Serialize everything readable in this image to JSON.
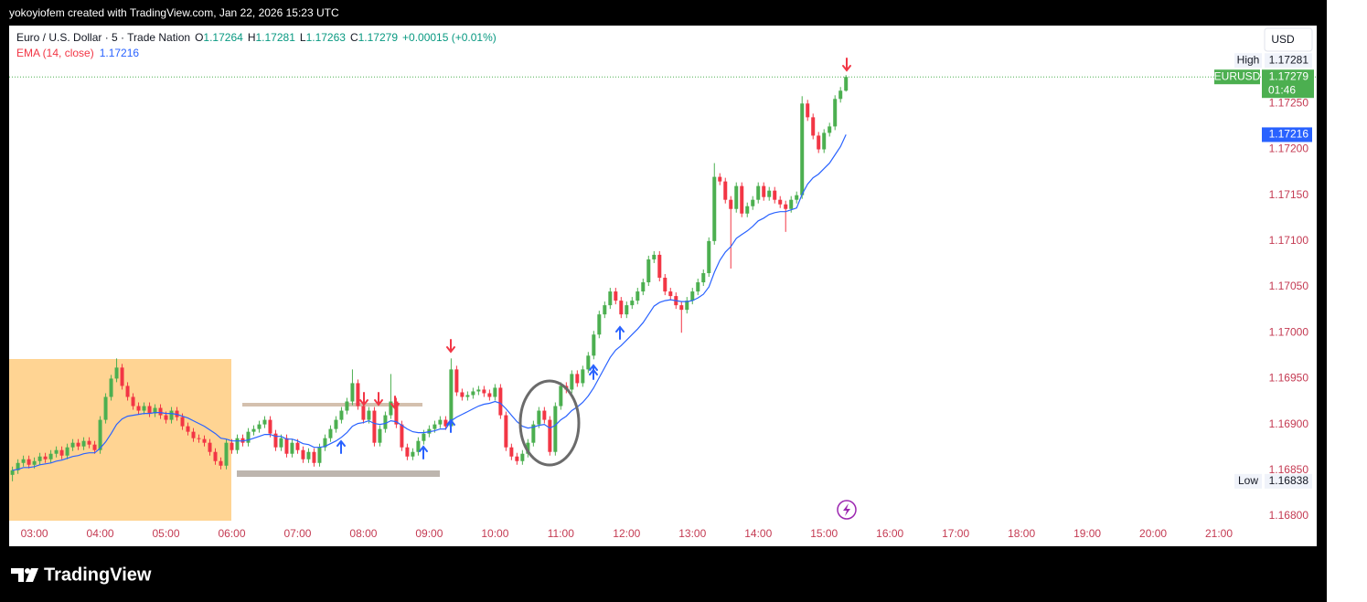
{
  "watermark": "yokoyiofem created with TradingView.com, Jan 22, 2026 15:23 UTC",
  "logo": "TradingView",
  "chart_data": {
    "type": "candlestick",
    "title": "Euro / U.S. Dollar · 5 · Trade Nation",
    "legend_keys": [
      "O",
      "H",
      "L",
      "C"
    ],
    "change": "+0.00015 (+0.01%)",
    "ema_label": "EMA (14, close)",
    "ema_color": "#2962ff",
    "up_color": "#4caf50",
    "down_color": "#f23645",
    "currency": "USD",
    "symbol": "EURUSD",
    "countdown": "01:46",
    "high_label": "High",
    "low_label": "Low",
    "x": [
      "02:40",
      "02:45",
      "02:50",
      "02:55",
      "03:00",
      "03:05",
      "03:10",
      "03:15",
      "03:20",
      "03:25",
      "03:30",
      "03:35",
      "03:40",
      "03:45",
      "03:50",
      "03:55",
      "04:00",
      "04:05",
      "04:10",
      "04:15",
      "04:20",
      "04:25",
      "04:30",
      "04:35",
      "04:40",
      "04:45",
      "04:50",
      "04:55",
      "05:00",
      "05:05",
      "05:10",
      "05:15",
      "05:20",
      "05:25",
      "05:30",
      "05:35",
      "05:40",
      "05:45",
      "05:50",
      "05:55",
      "06:00",
      "06:05",
      "06:10",
      "06:15",
      "06:20",
      "06:25",
      "06:30",
      "06:35",
      "06:40",
      "06:45",
      "06:50",
      "06:55",
      "07:00",
      "07:05",
      "07:10",
      "07:15",
      "07:20",
      "07:25",
      "07:30",
      "07:35",
      "07:40",
      "07:45",
      "07:50",
      "07:55",
      "08:00",
      "08:05",
      "08:10",
      "08:15",
      "08:20",
      "08:25",
      "08:30",
      "08:35",
      "08:40",
      "08:45",
      "08:50",
      "08:55",
      "09:00",
      "09:05",
      "09:10",
      "09:15",
      "09:20",
      "09:25",
      "09:30",
      "09:35",
      "09:40",
      "09:45",
      "09:50",
      "09:55",
      "10:00",
      "10:05",
      "10:10",
      "10:15",
      "10:20",
      "10:25",
      "10:30",
      "10:35",
      "10:40",
      "10:45",
      "10:50",
      "10:55",
      "11:00",
      "11:05",
      "11:10",
      "11:15",
      "11:20",
      "11:25",
      "11:30",
      "11:35",
      "11:40",
      "11:45",
      "11:50",
      "11:55",
      "12:00",
      "12:05",
      "12:10",
      "12:15",
      "12:20",
      "12:25",
      "12:30",
      "12:35",
      "12:40",
      "12:45",
      "12:50",
      "12:55",
      "13:00",
      "13:05",
      "13:10",
      "13:15",
      "13:20",
      "13:25",
      "13:30",
      "13:35",
      "13:40",
      "13:45",
      "13:50",
      "13:55",
      "14:00",
      "14:05",
      "14:10",
      "14:15",
      "14:20",
      "14:25",
      "14:30",
      "14:35",
      "14:40",
      "14:45",
      "14:50",
      "14:55",
      "15:00",
      "15:05",
      "15:10",
      "15:15",
      "15:20"
    ],
    "open": [
      1.16845,
      1.1685,
      1.16858,
      1.16862,
      1.16856,
      1.1686,
      1.16865,
      1.16862,
      1.16868,
      1.16872,
      1.16866,
      1.16875,
      1.1688,
      1.16876,
      1.16882,
      1.16878,
      1.16872,
      1.16905,
      1.1693,
      1.1695,
      1.16962,
      1.16942,
      1.1693,
      1.1692,
      1.16915,
      1.1692,
      1.16912,
      1.16918,
      1.1691,
      1.16905,
      1.16915,
      1.16908,
      1.16898,
      1.16892,
      1.16885,
      1.16884,
      1.1688,
      1.1687,
      1.1686,
      1.16855,
      1.1688,
      1.16872,
      1.16885,
      1.1688,
      1.16892,
      1.16895,
      1.169,
      1.16905,
      1.1689,
      1.16875,
      1.16885,
      1.16868,
      1.1688,
      1.16872,
      1.16862,
      1.1687,
      1.16858,
      1.16875,
      1.16885,
      1.16895,
      1.16905,
      1.16915,
      1.16925,
      1.16945,
      1.1692,
      1.16905,
      1.16915,
      1.1688,
      1.16895,
      1.1691,
      1.16925,
      1.169,
      1.16875,
      1.16865,
      1.1687,
      1.16882,
      1.1689,
      1.16895,
      1.169,
      1.16905,
      1.16898,
      1.1696,
      1.16935,
      1.1693,
      1.16932,
      1.16936,
      1.16938,
      1.16934,
      1.1693,
      1.1694,
      1.1691,
      1.16875,
      1.16865,
      1.1686,
      1.16868,
      1.1688,
      1.169,
      1.16915,
      1.16905,
      1.1687,
      1.1692,
      1.16942,
      1.16938,
      1.16955,
      1.16945,
      1.1696,
      1.16975,
      1.16998,
      1.1702,
      1.1703,
      1.17045,
      1.17035,
      1.1702,
      1.1703,
      1.17035,
      1.17045,
      1.17055,
      1.1708,
      1.17085,
      1.1706,
      1.17045,
      1.1704,
      1.1703,
      1.17025,
      1.17035,
      1.17045,
      1.17055,
      1.17065,
      1.171,
      1.1717,
      1.17165,
      1.17145,
      1.17135,
      1.1716,
      1.1713,
      1.17138,
      1.17145,
      1.1716,
      1.17148,
      1.17155,
      1.17145,
      1.1714,
      1.17135,
      1.17145,
      1.1715,
      1.1725,
      1.17235,
      1.17215,
      1.172,
      1.17218,
      1.17225,
      1.17255,
      1.17264
    ],
    "high": [
      1.16854,
      1.16862,
      1.16866,
      1.16866,
      1.16864,
      1.16869,
      1.16869,
      1.16872,
      1.16876,
      1.16876,
      1.16879,
      1.16884,
      1.16884,
      1.16886,
      1.16886,
      1.16882,
      1.16909,
      1.16934,
      1.16954,
      1.16972,
      1.16966,
      1.16946,
      1.16934,
      1.16924,
      1.16924,
      1.16924,
      1.16922,
      1.16922,
      1.16914,
      1.16919,
      1.16919,
      1.16912,
      1.16902,
      1.16896,
      1.16889,
      1.16888,
      1.16884,
      1.16874,
      1.16864,
      1.16884,
      1.16884,
      1.16889,
      1.16889,
      1.16896,
      1.16899,
      1.16904,
      1.16909,
      1.16909,
      1.16894,
      1.16889,
      1.16889,
      1.16884,
      1.16884,
      1.16876,
      1.16874,
      1.16874,
      1.16879,
      1.16889,
      1.16899,
      1.16909,
      1.16919,
      1.16929,
      1.1696,
      1.16949,
      1.16924,
      1.16919,
      1.16919,
      1.16899,
      1.16914,
      1.16955,
      1.16929,
      1.16904,
      1.16879,
      1.16874,
      1.16886,
      1.16894,
      1.16899,
      1.16904,
      1.16909,
      1.16909,
      1.16972,
      1.16964,
      1.16939,
      1.16936,
      1.1694,
      1.16942,
      1.16942,
      1.16938,
      1.16944,
      1.16944,
      1.16914,
      1.16879,
      1.16869,
      1.16872,
      1.16884,
      1.16904,
      1.16919,
      1.16919,
      1.16909,
      1.16924,
      1.16946,
      1.16946,
      1.16959,
      1.16959,
      1.16964,
      1.16979,
      1.17002,
      1.17024,
      1.17034,
      1.17049,
      1.17049,
      1.17039,
      1.17034,
      1.17039,
      1.17049,
      1.17059,
      1.17084,
      1.17089,
      1.17089,
      1.17064,
      1.17049,
      1.17044,
      1.17034,
      1.17039,
      1.17049,
      1.17059,
      1.17069,
      1.17104,
      1.17185,
      1.17174,
      1.17169,
      1.17149,
      1.17164,
      1.17164,
      1.17142,
      1.17149,
      1.17164,
      1.17164,
      1.17159,
      1.17159,
      1.17149,
      1.17144,
      1.17149,
      1.17154,
      1.17258,
      1.17254,
      1.17239,
      1.17219,
      1.17222,
      1.17229,
      1.17259,
      1.17268,
      1.17281
    ],
    "low": [
      1.16838,
      1.16846,
      1.16854,
      1.16852,
      1.16852,
      1.16856,
      1.16858,
      1.16858,
      1.16864,
      1.16862,
      1.16862,
      1.16871,
      1.16872,
      1.16872,
      1.16874,
      1.16868,
      1.16868,
      1.16901,
      1.16926,
      1.16946,
      1.16938,
      1.16926,
      1.16916,
      1.16911,
      1.16911,
      1.16908,
      1.16908,
      1.16906,
      1.16901,
      1.16901,
      1.16904,
      1.16894,
      1.16888,
      1.16881,
      1.1688,
      1.16876,
      1.16866,
      1.16856,
      1.16851,
      1.16851,
      1.16868,
      1.16868,
      1.16876,
      1.16876,
      1.16888,
      1.16891,
      1.16896,
      1.16886,
      1.16871,
      1.16871,
      1.16864,
      1.16864,
      1.16868,
      1.16858,
      1.16858,
      1.16854,
      1.16854,
      1.16871,
      1.16881,
      1.16891,
      1.16901,
      1.16911,
      1.16921,
      1.16916,
      1.16901,
      1.16901,
      1.16876,
      1.16876,
      1.16891,
      1.16906,
      1.16896,
      1.16871,
      1.16861,
      1.16861,
      1.16866,
      1.16878,
      1.16886,
      1.16891,
      1.16896,
      1.16894,
      1.16894,
      1.16931,
      1.16926,
      1.16926,
      1.16928,
      1.16932,
      1.1693,
      1.16926,
      1.16926,
      1.16906,
      1.16871,
      1.16861,
      1.16856,
      1.16856,
      1.16864,
      1.16876,
      1.16896,
      1.16901,
      1.16866,
      1.16866,
      1.16916,
      1.16934,
      1.16934,
      1.16941,
      1.16941,
      1.16956,
      1.16971,
      1.16994,
      1.17016,
      1.17026,
      1.17031,
      1.17016,
      1.17016,
      1.17026,
      1.17031,
      1.17041,
      1.17051,
      1.17076,
      1.17056,
      1.17041,
      1.17036,
      1.17026,
      1.17,
      1.17021,
      1.17031,
      1.17041,
      1.17051,
      1.17061,
      1.17096,
      1.17161,
      1.17141,
      1.1707,
      1.17131,
      1.17126,
      1.17126,
      1.17134,
      1.17141,
      1.17144,
      1.17144,
      1.17141,
      1.17136,
      1.1711,
      1.17131,
      1.17141,
      1.17146,
      1.17231,
      1.17211,
      1.17196,
      1.17196,
      1.17214,
      1.17221,
      1.17251,
      1.17263
    ],
    "close": [
      1.1685,
      1.16858,
      1.16862,
      1.16856,
      1.1686,
      1.16865,
      1.16862,
      1.16868,
      1.16872,
      1.16866,
      1.16875,
      1.1688,
      1.16876,
      1.16882,
      1.16878,
      1.16872,
      1.16905,
      1.1693,
      1.1695,
      1.16962,
      1.16942,
      1.1693,
      1.1692,
      1.16915,
      1.1692,
      1.16912,
      1.16918,
      1.1691,
      1.16905,
      1.16915,
      1.16908,
      1.16898,
      1.16892,
      1.16885,
      1.16884,
      1.1688,
      1.1687,
      1.1686,
      1.16855,
      1.1688,
      1.16872,
      1.16885,
      1.1688,
      1.16892,
      1.16895,
      1.169,
      1.16905,
      1.1689,
      1.16875,
      1.16885,
      1.16868,
      1.1688,
      1.16872,
      1.16862,
      1.1687,
      1.16858,
      1.16875,
      1.16885,
      1.16895,
      1.16905,
      1.16915,
      1.16925,
      1.16945,
      1.1692,
      1.16905,
      1.16915,
      1.1688,
      1.16895,
      1.1691,
      1.16925,
      1.169,
      1.16875,
      1.16865,
      1.1687,
      1.16882,
      1.1689,
      1.16895,
      1.169,
      1.16905,
      1.16898,
      1.1696,
      1.16935,
      1.1693,
      1.16932,
      1.16936,
      1.16938,
      1.16934,
      1.1693,
      1.1694,
      1.1691,
      1.16875,
      1.16865,
      1.1686,
      1.16868,
      1.1688,
      1.169,
      1.16915,
      1.16905,
      1.1687,
      1.1692,
      1.16942,
      1.16938,
      1.16955,
      1.16945,
      1.1696,
      1.16975,
      1.16998,
      1.1702,
      1.1703,
      1.17045,
      1.17035,
      1.1702,
      1.1703,
      1.17035,
      1.17045,
      1.17055,
      1.1708,
      1.17085,
      1.1706,
      1.17045,
      1.1704,
      1.1703,
      1.17025,
      1.17035,
      1.17045,
      1.17055,
      1.17065,
      1.171,
      1.1717,
      1.17165,
      1.17145,
      1.17135,
      1.1716,
      1.1713,
      1.17138,
      1.17145,
      1.1716,
      1.17148,
      1.17155,
      1.17145,
      1.1714,
      1.17135,
      1.17145,
      1.1715,
      1.1725,
      1.17235,
      1.17215,
      1.172,
      1.17218,
      1.17225,
      1.17255,
      1.17264,
      1.17279
    ],
    "ema": [
      1.1685,
      1.16851,
      1.16853,
      1.16853,
      1.16854,
      1.16856,
      1.16857,
      1.16858,
      1.1686,
      1.16861,
      1.16863,
      1.16865,
      1.16866,
      1.16868,
      1.16869,
      1.16869,
      1.16874,
      1.16881,
      1.1689,
      1.169,
      1.16906,
      1.16909,
      1.1691,
      1.16911,
      1.16912,
      1.16912,
      1.16913,
      1.16913,
      1.16912,
      1.16912,
      1.16911,
      1.16909,
      1.16907,
      1.16904,
      1.16901,
      1.16898,
      1.16894,
      1.1689,
      1.16885,
      1.16884,
      1.16882,
      1.16882,
      1.16882,
      1.16883,
      1.16885,
      1.16887,
      1.16889,
      1.16889,
      1.16887,
      1.16887,
      1.16884,
      1.16884,
      1.16882,
      1.16879,
      1.16878,
      1.16875,
      1.16875,
      1.16876,
      1.16879,
      1.16882,
      1.16886,
      1.16891,
      1.16898,
      1.16901,
      1.16902,
      1.16904,
      1.16901,
      1.169,
      1.16901,
      1.16904,
      1.16903,
      1.16899,
      1.16895,
      1.16892,
      1.16891,
      1.16891,
      1.16892,
      1.16893,
      1.16895,
      1.16895,
      1.16904,
      1.16908,
      1.16911,
      1.16914,
      1.16917,
      1.1692,
      1.16922,
      1.16923,
      1.16925,
      1.16923,
      1.16917,
      1.1691,
      1.16903,
      1.16898,
      1.16896,
      1.16897,
      1.16899,
      1.169,
      1.16896,
      1.16899,
      1.16905,
      1.16909,
      1.16915,
      1.16919,
      1.16924,
      1.16931,
      1.1694,
      1.16951,
      1.16962,
      1.16973,
      1.16981,
      1.16986,
      1.16992,
      1.16998,
      1.17004,
      1.17011,
      1.1702,
      1.17029,
      1.17033,
      1.17035,
      1.17036,
      1.17035,
      1.17034,
      1.17034,
      1.17035,
      1.17038,
      1.17042,
      1.1705,
      1.17066,
      1.17079,
      1.17088,
      1.17094,
      1.17103,
      1.17107,
      1.17111,
      1.17116,
      1.17122,
      1.17125,
      1.17129,
      1.17131,
      1.17132,
      1.17132,
      1.17134,
      1.17136,
      1.17151,
      1.17162,
      1.17169,
      1.17173,
      1.17179,
      1.17185,
      1.17194,
      1.17203,
      1.17216
    ],
    "xlim": [
      "02:37",
      "21:35"
    ],
    "xticks": [
      "03:00",
      "04:00",
      "05:00",
      "06:00",
      "07:00",
      "08:00",
      "09:00",
      "10:00",
      "11:00",
      "12:00",
      "13:00",
      "14:00",
      "15:00",
      "16:00",
      "17:00",
      "18:00",
      "19:00",
      "20:00",
      "21:00"
    ],
    "ylim": [
      1.16793,
      1.17335
    ],
    "yticks": [
      {
        "value": 1.168,
        "label": "1.16800"
      },
      {
        "value": 1.1685,
        "label": "1.16850"
      },
      {
        "value": 1.169,
        "label": "1.16900"
      },
      {
        "value": 1.1695,
        "label": "1.16950"
      },
      {
        "value": 1.17,
        "label": "1.17000"
      },
      {
        "value": 1.1705,
        "label": "1.17050"
      },
      {
        "value": 1.171,
        "label": "1.17100"
      },
      {
        "value": 1.1715,
        "label": "1.17150"
      },
      {
        "value": 1.172,
        "label": "1.17200"
      },
      {
        "value": 1.1725,
        "label": "1.17250"
      }
    ]
  }
}
